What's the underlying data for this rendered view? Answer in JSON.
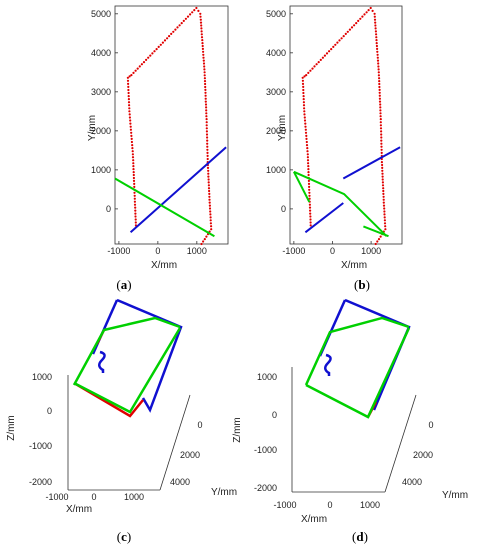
{
  "chart_data": [
    {
      "panel": "a",
      "type": "scatter",
      "caption": {
        "open": "(",
        "letter": "a",
        "close": ")"
      },
      "xlabel": "X/mm",
      "ylabel": "Y/mm",
      "xlim": [
        -1100,
        1800
      ],
      "ylim": [
        -900,
        5200
      ],
      "xticks": [
        -1000,
        0,
        1000
      ],
      "yticks": [
        0,
        1000,
        2000,
        3000,
        4000,
        5000
      ],
      "series": [
        {
          "color": "#e00000",
          "style": "dots",
          "points": [
            [
              1120,
              -900
            ],
            [
              1370,
              -520
            ],
            [
              1330,
              160
            ],
            [
              1280,
              1200
            ],
            [
              1250,
              2300
            ],
            [
              1200,
              3500
            ],
            [
              1090,
              5000
            ],
            [
              990,
              5150
            ],
            [
              -680,
              3430
            ],
            [
              -770,
              3360
            ],
            [
              -730,
              2500
            ],
            [
              -640,
              1400
            ],
            [
              -560,
              -500
            ]
          ]
        },
        {
          "color": "#1010d0",
          "style": "line",
          "points": [
            [
              -700,
              -600
            ],
            [
              1750,
              1580
            ]
          ]
        },
        {
          "color": "#00d000",
          "style": "line",
          "points": [
            [
              -1100,
              780
            ],
            [
              1450,
              -700
            ]
          ]
        }
      ]
    },
    {
      "panel": "b",
      "type": "scatter",
      "caption": {
        "open": "(",
        "letter": "b",
        "close": ")"
      },
      "xlabel": "X/mm",
      "ylabel": "Y/mm",
      "xlim": [
        -1100,
        1800
      ],
      "ylim": [
        -900,
        5200
      ],
      "xticks": [
        -1000,
        0,
        1000
      ],
      "yticks": [
        0,
        1000,
        2000,
        3000,
        4000,
        5000
      ],
      "series": [
        {
          "color": "#e00000",
          "style": "dots",
          "points": [
            [
              1120,
              -900
            ],
            [
              1370,
              -520
            ],
            [
              1330,
              160
            ],
            [
              1280,
              1200
            ],
            [
              1250,
              2300
            ],
            [
              1200,
              3500
            ],
            [
              1090,
              5000
            ],
            [
              990,
              5150
            ],
            [
              -680,
              3430
            ],
            [
              -770,
              3360
            ],
            [
              -730,
              2500
            ],
            [
              -640,
              1400
            ],
            [
              -560,
              -500
            ]
          ]
        },
        {
          "color": "#1010d0",
          "style": "line",
          "points": [
            [
              -700,
              -600
            ],
            [
              280,
              150
            ]
          ]
        },
        {
          "color": "#1010d0",
          "style": "line",
          "points": [
            [
              280,
              780
            ],
            [
              1750,
              1580
            ]
          ]
        },
        {
          "color": "#00d000",
          "style": "line",
          "points": [
            [
              -1000,
              950
            ],
            [
              -600,
              180
            ]
          ]
        },
        {
          "color": "#00d000",
          "style": "line",
          "points": [
            [
              -1000,
              950
            ],
            [
              300,
              380
            ],
            [
              1400,
              -700
            ]
          ]
        },
        {
          "color": "#00d000",
          "style": "line",
          "points": [
            [
              800,
              -450
            ],
            [
              1450,
              -700
            ]
          ]
        }
      ]
    },
    {
      "panel": "c",
      "type": "3d-line",
      "caption": {
        "open": "(",
        "letter": "c",
        "close": ")"
      },
      "xlabel": "X/mm",
      "ylabel": "Y/mm",
      "zlabel": "Z/mm",
      "xticks": [
        -1000,
        0,
        1000
      ],
      "yticks": [
        0,
        2000,
        4000
      ],
      "zticks": [
        1000,
        0,
        -1000,
        -2000
      ]
    },
    {
      "panel": "d",
      "type": "3d-line",
      "caption": {
        "open": "(",
        "letter": "d",
        "close": ")"
      },
      "xlabel": "X/mm",
      "ylabel": "Y/mm",
      "zlabel": "Z/mm",
      "xticks": [
        -1000,
        0,
        1000
      ],
      "yticks": [
        0,
        2000,
        4000
      ],
      "zticks": [
        1000,
        0,
        -1000,
        -2000
      ]
    }
  ]
}
